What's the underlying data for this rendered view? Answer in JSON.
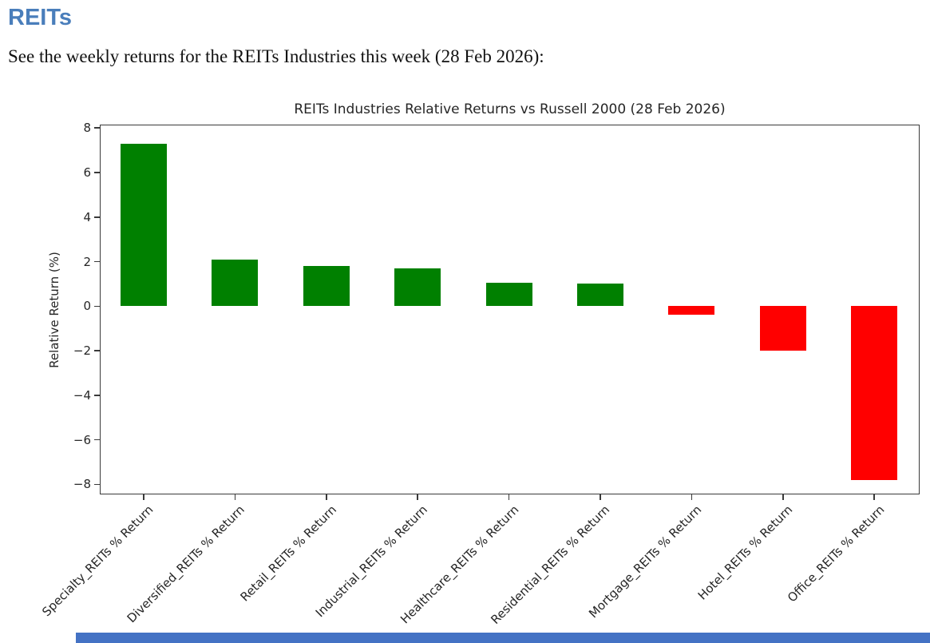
{
  "page": {
    "heading": "REITs",
    "intro": "See the weekly returns for the REITs Industries this week (28 Feb 2026):",
    "accent_color": "#4A7EBB"
  },
  "chart_data": {
    "type": "bar",
    "title": "REITs Industries Relative Returns vs Russell 2000 (28 Feb 2026)",
    "xlabel": "",
    "ylabel": "Relative Return (%)",
    "categories": [
      "Specialty_REITs % Return",
      "Diversified_REITs % Return",
      "Retail_REITs % Return",
      "Industrial_REITs % Return",
      "Healthcare_REITs % Return",
      "Residential_REITs % Return",
      "Mortgage_REITs % Return",
      "Hotel_REITs % Return",
      "Office_REITs % Return"
    ],
    "values": [
      7.3,
      2.1,
      1.8,
      1.7,
      1.05,
      1.0,
      -0.4,
      -2.0,
      -7.8
    ],
    "positive_color": "#008000",
    "negative_color": "#FF0000",
    "ylim": [
      -8.45,
      8.15
    ],
    "yticks": [
      8,
      6,
      4,
      2,
      0,
      -2,
      -4,
      -6,
      -8
    ],
    "grid": false,
    "legend": "none",
    "x_tick_rotation_deg": 45
  },
  "scrollbar": {
    "color": "#4472C4"
  }
}
